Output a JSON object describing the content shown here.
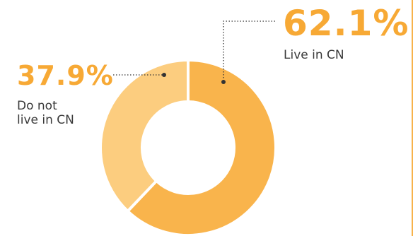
{
  "chart_data": {
    "type": "pie",
    "title": "",
    "categories": [
      "Live in CN",
      "Do not\nlive in CN"
    ],
    "values": [
      62.1,
      37.9
    ],
    "labels": [
      "62.1%",
      "37.9%"
    ],
    "colors": [
      "#f9b44c",
      "#fccd7f"
    ],
    "separator_color": "#ffffff",
    "leader_line_color": "#333333"
  }
}
